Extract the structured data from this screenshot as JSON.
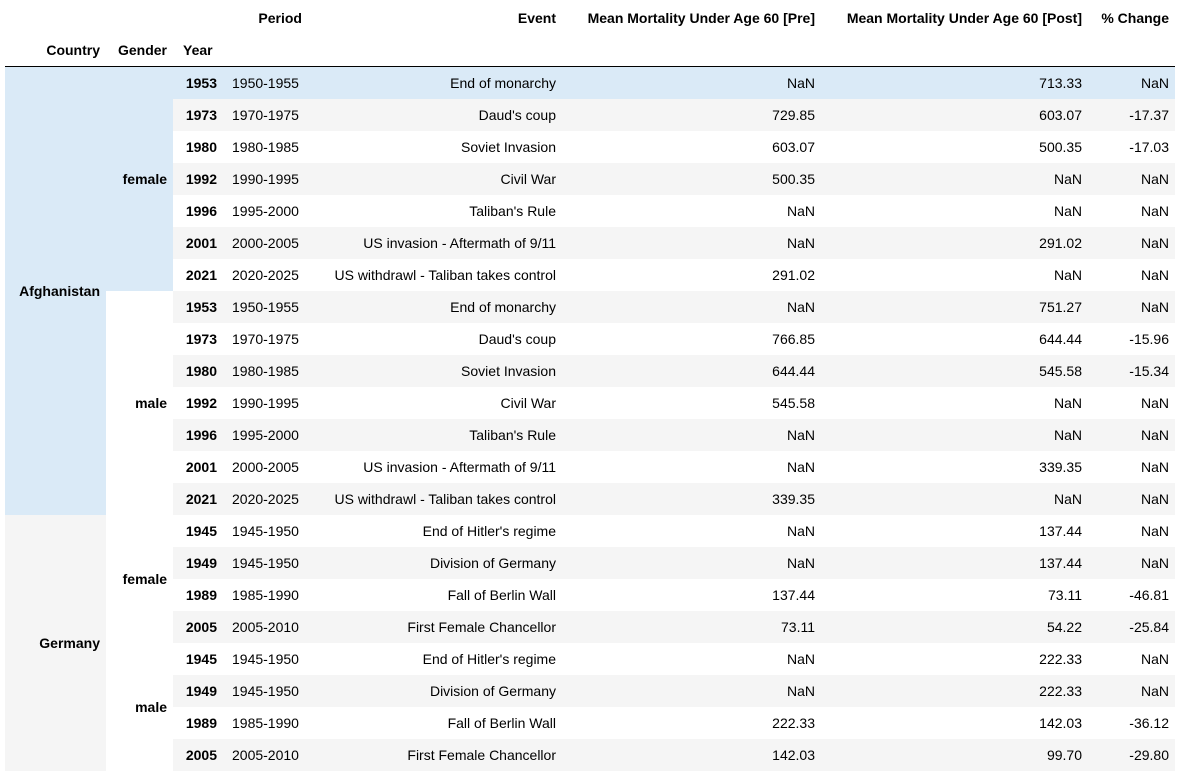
{
  "header": {
    "columns": {
      "period": "Period",
      "event": "Event",
      "pre": "Mean Mortality Under Age 60 [Pre]",
      "post": "Mean Mortality Under Age 60 [Post]",
      "change": "% Change"
    },
    "index": {
      "country": "Country",
      "gender": "Gender",
      "year": "Year"
    }
  },
  "groups": {
    "afghanistan": "Afghanistan",
    "germany": "Germany",
    "female": "female",
    "male": "male"
  },
  "rows": [
    {
      "year": "1953",
      "period": "1950-1955",
      "event": "End of monarchy",
      "pre": "NaN",
      "post": "713.33",
      "change": "NaN"
    },
    {
      "year": "1973",
      "period": "1970-1975",
      "event": "Daud's coup",
      "pre": "729.85",
      "post": "603.07",
      "change": "-17.37"
    },
    {
      "year": "1980",
      "period": "1980-1985",
      "event": "Soviet Invasion",
      "pre": "603.07",
      "post": "500.35",
      "change": "-17.03"
    },
    {
      "year": "1992",
      "period": "1990-1995",
      "event": "Civil War",
      "pre": "500.35",
      "post": "NaN",
      "change": "NaN"
    },
    {
      "year": "1996",
      "period": "1995-2000",
      "event": "Taliban's Rule",
      "pre": "NaN",
      "post": "NaN",
      "change": "NaN"
    },
    {
      "year": "2001",
      "period": "2000-2005",
      "event": "US invasion - Aftermath of 9/11",
      "pre": "NaN",
      "post": "291.02",
      "change": "NaN"
    },
    {
      "year": "2021",
      "period": "2020-2025",
      "event": "US withdrawl - Taliban takes control",
      "pre": "291.02",
      "post": "NaN",
      "change": "NaN"
    },
    {
      "year": "1953",
      "period": "1950-1955",
      "event": "End of monarchy",
      "pre": "NaN",
      "post": "751.27",
      "change": "NaN"
    },
    {
      "year": "1973",
      "period": "1970-1975",
      "event": "Daud's coup",
      "pre": "766.85",
      "post": "644.44",
      "change": "-15.96"
    },
    {
      "year": "1980",
      "period": "1980-1985",
      "event": "Soviet Invasion",
      "pre": "644.44",
      "post": "545.58",
      "change": "-15.34"
    },
    {
      "year": "1992",
      "period": "1990-1995",
      "event": "Civil War",
      "pre": "545.58",
      "post": "NaN",
      "change": "NaN"
    },
    {
      "year": "1996",
      "period": "1995-2000",
      "event": "Taliban's Rule",
      "pre": "NaN",
      "post": "NaN",
      "change": "NaN"
    },
    {
      "year": "2001",
      "period": "2000-2005",
      "event": "US invasion - Aftermath of 9/11",
      "pre": "NaN",
      "post": "339.35",
      "change": "NaN"
    },
    {
      "year": "2021",
      "period": "2020-2025",
      "event": "US withdrawl - Taliban takes control",
      "pre": "339.35",
      "post": "NaN",
      "change": "NaN"
    },
    {
      "year": "1945",
      "period": "1945-1950",
      "event": "End of Hitler's regime",
      "pre": "NaN",
      "post": "137.44",
      "change": "NaN"
    },
    {
      "year": "1949",
      "period": "1945-1950",
      "event": "Division of Germany",
      "pre": "NaN",
      "post": "137.44",
      "change": "NaN"
    },
    {
      "year": "1989",
      "period": "1985-1990",
      "event": "Fall of Berlin Wall",
      "pre": "137.44",
      "post": "73.11",
      "change": "-46.81"
    },
    {
      "year": "2005",
      "period": "2005-2010",
      "event": "First Female Chancellor",
      "pre": "73.11",
      "post": "54.22",
      "change": "-25.84"
    },
    {
      "year": "1945",
      "period": "1945-1950",
      "event": "End of Hitler's regime",
      "pre": "NaN",
      "post": "222.33",
      "change": "NaN"
    },
    {
      "year": "1949",
      "period": "1945-1950",
      "event": "Division of Germany",
      "pre": "NaN",
      "post": "222.33",
      "change": "NaN"
    },
    {
      "year": "1989",
      "period": "1985-1990",
      "event": "Fall of Berlin Wall",
      "pre": "222.33",
      "post": "142.03",
      "change": "-36.12"
    },
    {
      "year": "2005",
      "period": "2005-2010",
      "event": "First Female Chancellor",
      "pre": "142.03",
      "post": "99.70",
      "change": "-29.80"
    }
  ],
  "colors": {
    "highlight": "#daeaf7",
    "stripe": "#f5f5f5",
    "background": "#ffffff",
    "rule": "#000000"
  }
}
